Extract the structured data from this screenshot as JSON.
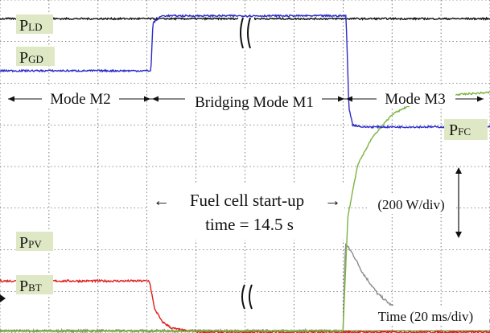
{
  "chart_data": {
    "type": "line",
    "title": "",
    "xlabel": "",
    "ylabel": "",
    "x_unit_note": "Time (20 ms/div)",
    "y_unit_note": "(200 W/div)",
    "grid": true,
    "x_divisions": 10,
    "y_divisions": 8,
    "xlim": [
      0,
      10
    ],
    "ylim": [
      0,
      8
    ],
    "series": [
      {
        "key": "pld",
        "name": "PLD",
        "label_main": "P",
        "label_sub": "LD",
        "color": "#111111",
        "x": [
          0,
          10
        ],
        "y": [
          7.55,
          7.55
        ],
        "noise": 0.04
      },
      {
        "key": "pgd",
        "name": "PGD",
        "label_main": "P",
        "label_sub": "GD",
        "color": "#2b2bc8",
        "x": [
          0,
          3.08,
          3.12,
          3.3,
          7.06,
          7.08,
          7.12,
          7.2,
          7.4,
          10
        ],
        "y": [
          6.3,
          6.3,
          7.45,
          7.62,
          7.62,
          7.0,
          5.4,
          5.0,
          4.95,
          4.95
        ],
        "noise": 0.04
      },
      {
        "key": "ppv",
        "name": "PPV",
        "label_main": "P",
        "label_sub": "PV",
        "color": "#e01b1b",
        "x": [
          0,
          3.05,
          3.15,
          3.3,
          3.5,
          3.8,
          4.2,
          10
        ],
        "y": [
          1.25,
          1.25,
          0.6,
          0.28,
          0.12,
          0.05,
          0.02,
          0.02
        ],
        "noise": 0.05
      },
      {
        "key": "pbt",
        "name": "PBT",
        "label_main": "P",
        "label_sub": "BT",
        "color": "#6b8e23",
        "x": [
          0,
          10
        ],
        "y": [
          0.05,
          0.05
        ],
        "noise": 0.01
      },
      {
        "key": "pfc",
        "name": "PFC",
        "label_main": "P",
        "label_sub": "FC",
        "color": "#7bb441",
        "x": [
          0,
          7.0,
          7.1,
          7.3,
          7.6,
          8.0,
          8.5,
          9.0,
          10
        ],
        "y": [
          0.05,
          0.05,
          2.8,
          4.05,
          4.7,
          5.25,
          5.55,
          5.7,
          5.78
        ],
        "noise": 0.04
      },
      {
        "key": "gray",
        "name": "",
        "color": "#8c8c8c",
        "x": [
          0,
          7.0,
          7.05,
          7.2,
          7.4,
          7.7,
          8.0,
          8.4,
          9.0,
          10
        ],
        "y": [
          0.05,
          0.05,
          2.15,
          1.9,
          1.45,
          0.95,
          0.65,
          0.42,
          0.3,
          0.28
        ],
        "noise": 0.06
      }
    ],
    "modes": [
      {
        "label": "Mode M2"
      },
      {
        "label": "Bridging Mode M1"
      },
      {
        "label": "Mode M3"
      }
    ],
    "annotations": {
      "startup_line1": "Fuel cell start-up",
      "startup_line2": "time = 14.5 s",
      "arrow_left": "←",
      "arrow_right": "→"
    }
  }
}
